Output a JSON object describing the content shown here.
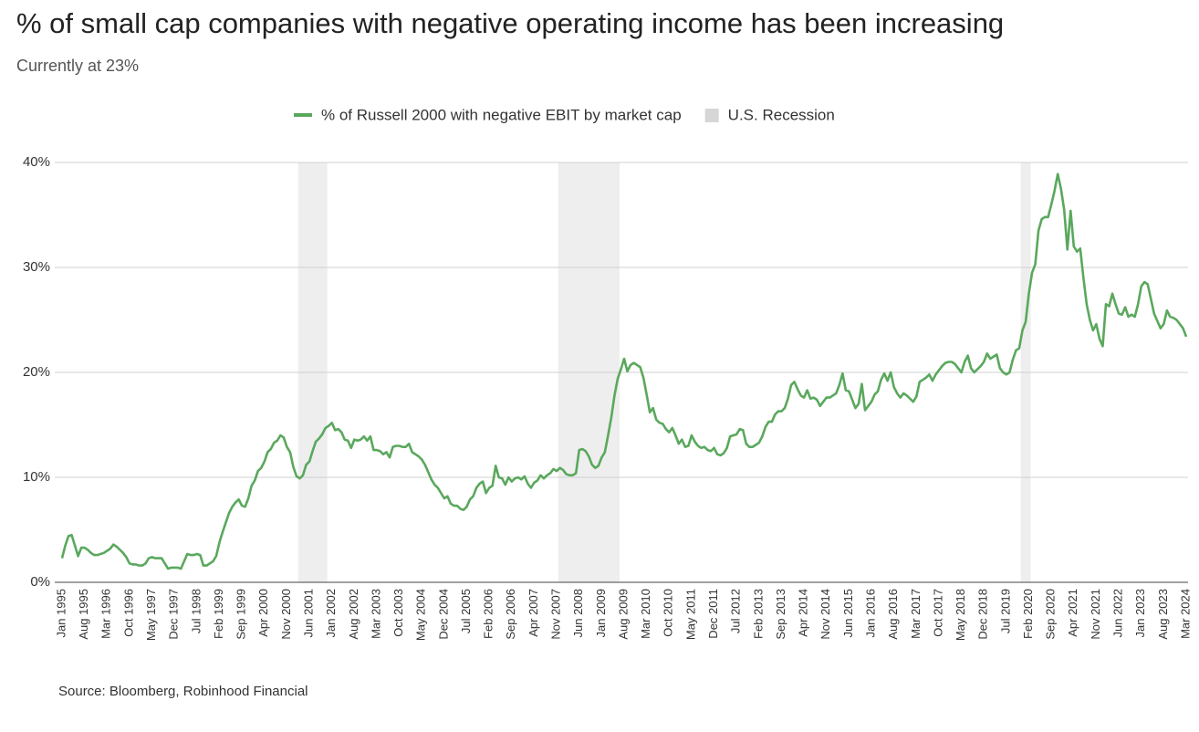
{
  "chart_data": {
    "type": "line",
    "title": "% of small cap companies with negative operating income has been increasing",
    "subtitle": "Currently at 23%",
    "source": "Source: Bloomberg, Robinhood Financial",
    "ylim": [
      0,
      40
    ],
    "yticks": [
      {
        "value": 0,
        "label": "0%"
      },
      {
        "value": 10,
        "label": "10%"
      },
      {
        "value": 20,
        "label": "20%"
      },
      {
        "value": 30,
        "label": "30%"
      },
      {
        "value": 40,
        "label": "40%"
      }
    ],
    "grid": true,
    "legend": "top",
    "categories": [
      "Jan 1995",
      null,
      null,
      null,
      null,
      null,
      null,
      "Aug 1995",
      null,
      null,
      null,
      null,
      null,
      null,
      "Mar 1996",
      null,
      null,
      null,
      null,
      null,
      null,
      "Oct 1996",
      null,
      null,
      null,
      null,
      null,
      null,
      "May 1997",
      null,
      null,
      null,
      null,
      null,
      null,
      "Dec 1997",
      null,
      null,
      null,
      null,
      null,
      null,
      "Jul 1998",
      null,
      null,
      null,
      null,
      null,
      null,
      "Feb 1999",
      null,
      null,
      null,
      null,
      null,
      null,
      "Sep 1999",
      null,
      null,
      null,
      null,
      null,
      null,
      "Apr 2000",
      null,
      null,
      null,
      null,
      null,
      null,
      "Nov 2000",
      null,
      null,
      null,
      null,
      null,
      null,
      "Jun 2001",
      null,
      null,
      null,
      null,
      null,
      null,
      "Jan 2002",
      null,
      null,
      null,
      null,
      null,
      null,
      "Aug 2002",
      null,
      null,
      null,
      null,
      null,
      null,
      "Mar 2003",
      null,
      null,
      null,
      null,
      null,
      null,
      "Oct 2003",
      null,
      null,
      null,
      null,
      null,
      null,
      "May 2004",
      null,
      null,
      null,
      null,
      null,
      null,
      "Dec 2004",
      null,
      null,
      null,
      null,
      null,
      null,
      "Jul 2005",
      null,
      null,
      null,
      null,
      null,
      null,
      "Feb 2006",
      null,
      null,
      null,
      null,
      null,
      null,
      "Sep 2006",
      null,
      null,
      null,
      null,
      null,
      null,
      "Apr 2007",
      null,
      null,
      null,
      null,
      null,
      null,
      "Nov 2007",
      null,
      null,
      null,
      null,
      null,
      null,
      "Jun 2008",
      null,
      null,
      null,
      null,
      null,
      null,
      "Jan 2009",
      null,
      null,
      null,
      null,
      null,
      null,
      "Aug 2009",
      null,
      null,
      null,
      null,
      null,
      null,
      "Mar 2010",
      null,
      null,
      null,
      null,
      null,
      null,
      "Oct 2010",
      null,
      null,
      null,
      null,
      null,
      null,
      "May 2011",
      null,
      null,
      null,
      null,
      null,
      null,
      "Dec 2011",
      null,
      null,
      null,
      null,
      null,
      null,
      "Jul 2012",
      null,
      null,
      null,
      null,
      null,
      null,
      "Feb 2013",
      null,
      null,
      null,
      null,
      null,
      null,
      "Sep 2013",
      null,
      null,
      null,
      null,
      null,
      null,
      "Apr 2014",
      null,
      null,
      null,
      null,
      null,
      null,
      "Nov 2014",
      null,
      null,
      null,
      null,
      null,
      null,
      "Jun 2015",
      null,
      null,
      null,
      null,
      null,
      null,
      "Jan 2016",
      null,
      null,
      null,
      null,
      null,
      null,
      "Aug 2016",
      null,
      null,
      null,
      null,
      null,
      null,
      "Mar 2017",
      null,
      null,
      null,
      null,
      null,
      null,
      "Oct 2017",
      null,
      null,
      null,
      null,
      null,
      null,
      "May 2018",
      null,
      null,
      null,
      null,
      null,
      null,
      "Dec 2018",
      null,
      null,
      null,
      null,
      null,
      null,
      "Jul 2019",
      null,
      null,
      null,
      null,
      null,
      null,
      "Feb 2020",
      null,
      null,
      null,
      null,
      null,
      null,
      "Sep 2020",
      null,
      null,
      null,
      null,
      null,
      null,
      "Apr 2021",
      null,
      null,
      null,
      null,
      null,
      null,
      "Nov 2021",
      null,
      null,
      null,
      null,
      null,
      null,
      "Jun 2022",
      null,
      null,
      null,
      null,
      null,
      null,
      "Jan 2023",
      null,
      null,
      null,
      null,
      null,
      null,
      "Aug 2023",
      null,
      null,
      null,
      null,
      null,
      null,
      "Mar 2024"
    ],
    "series": [
      {
        "name": "% of Russell 2000 with negative EBIT by market cap",
        "color": "#5aa85d",
        "values": [
          2.3,
          3.5,
          4.4,
          4.5,
          3.5,
          2.5,
          3.3,
          3.3,
          3.1,
          2.8,
          2.6,
          2.6,
          2.7,
          2.8,
          3.0,
          3.2,
          3.6,
          3.4,
          3.1,
          2.8,
          2.4,
          1.8,
          1.7,
          1.7,
          1.6,
          1.6,
          1.8,
          2.3,
          2.4,
          2.3,
          2.3,
          2.3,
          1.8,
          1.3,
          1.4,
          1.4,
          1.4,
          1.3,
          2.0,
          2.7,
          2.6,
          2.6,
          2.7,
          2.6,
          1.6,
          1.6,
          1.8,
          2.0,
          2.5,
          3.8,
          4.8,
          5.7,
          6.6,
          7.2,
          7.6,
          7.9,
          7.3,
          7.2,
          8.0,
          9.2,
          9.7,
          10.6,
          10.9,
          11.5,
          12.4,
          12.7,
          13.3,
          13.5,
          14.0,
          13.8,
          12.9,
          12.4,
          11.0,
          10.1,
          9.9,
          10.2,
          11.2,
          11.5,
          12.5,
          13.4,
          13.7,
          14.1,
          14.7,
          14.9,
          15.2,
          14.5,
          14.6,
          14.3,
          13.6,
          13.5,
          12.8,
          13.6,
          13.5,
          13.6,
          13.9,
          13.5,
          13.9,
          12.6,
          12.6,
          12.5,
          12.2,
          12.4,
          11.9,
          12.9,
          13.0,
          13.0,
          12.9,
          12.9,
          13.2,
          12.4,
          12.2,
          12.0,
          11.7,
          11.2,
          10.5,
          9.8,
          9.3,
          9.0,
          8.5,
          8.0,
          8.2,
          7.5,
          7.3,
          7.3,
          7.0,
          6.9,
          7.2,
          7.9,
          8.2,
          9.0,
          9.4,
          9.6,
          8.5,
          9.0,
          9.2,
          11.1,
          10.0,
          9.9,
          9.3,
          10.0,
          9.6,
          9.9,
          10.0,
          9.8,
          10.1,
          9.4,
          9.0,
          9.5,
          9.7,
          10.2,
          9.9,
          10.2,
          10.4,
          10.8,
          10.6,
          10.9,
          10.7,
          10.3,
          10.2,
          10.2,
          10.4,
          12.6,
          12.7,
          12.5,
          12.0,
          11.2,
          10.9,
          11.1,
          11.9,
          12.4,
          14.0,
          15.7,
          17.8,
          19.4,
          20.3,
          21.3,
          20.1,
          20.7,
          20.9,
          20.7,
          20.5,
          19.5,
          17.9,
          16.2,
          16.6,
          15.5,
          15.2,
          15.1,
          14.6,
          14.3,
          14.7,
          14.0,
          13.2,
          13.6,
          12.9,
          13.0,
          14.0,
          13.4,
          13.0,
          12.8,
          12.9,
          12.6,
          12.5,
          12.8,
          12.2,
          12.1,
          12.3,
          12.8,
          13.9,
          14.0,
          14.1,
          14.6,
          14.5,
          13.2,
          12.9,
          12.9,
          13.1,
          13.3,
          13.9,
          14.8,
          15.3,
          15.3,
          16.0,
          16.3,
          16.3,
          16.6,
          17.5,
          18.8,
          19.1,
          18.4,
          17.8,
          17.6,
          18.3,
          17.5,
          17.6,
          17.4,
          16.8,
          17.2,
          17.6,
          17.6,
          17.8,
          18.0,
          18.8,
          19.9,
          18.3,
          18.2,
          17.4,
          16.6,
          17.0,
          18.9,
          16.4,
          16.8,
          17.2,
          17.9,
          18.2,
          19.3,
          19.9,
          19.2,
          20.0,
          18.6,
          18.0,
          17.6,
          18.0,
          17.8,
          17.5,
          17.2,
          17.7,
          19.1,
          19.3,
          19.5,
          19.8,
          19.2,
          19.8,
          20.2,
          20.6,
          20.9,
          21.0,
          21.0,
          20.8,
          20.4,
          20.0,
          21.0,
          21.6,
          20.4,
          20.0,
          20.3,
          20.6,
          21.0,
          21.8,
          21.3,
          21.5,
          21.7,
          20.4,
          20.0,
          19.8,
          20.0,
          21.2,
          22.1,
          22.3,
          24.0,
          24.8,
          27.5,
          29.5,
          30.3,
          33.5,
          34.6,
          34.8,
          34.8,
          36.0,
          37.3,
          38.9,
          37.5,
          35.5,
          31.7,
          35.4,
          32.0,
          31.5,
          31.8,
          29.0,
          26.5,
          25.0,
          24.0,
          24.6,
          23.2,
          22.5,
          26.5,
          26.3,
          27.5,
          26.5,
          25.6,
          25.5,
          26.2,
          25.3,
          25.5,
          25.3,
          26.5,
          28.2,
          28.6,
          28.4,
          27.0,
          25.6,
          24.9,
          24.2,
          24.6,
          25.9,
          25.3,
          25.2,
          25.0,
          24.6,
          24.2,
          23.4
        ]
      },
      {
        "name": "U.S. Recession",
        "color": "#d6d6d6",
        "type": "band",
        "values": [
          null,
          null,
          null,
          null,
          null,
          null,
          null,
          null,
          null,
          null,
          null,
          null,
          null,
          null,
          null,
          null,
          null,
          null,
          null,
          null,
          null,
          null,
          null,
          null,
          null,
          null,
          null,
          null,
          null,
          null,
          null,
          null,
          null,
          null,
          null,
          null,
          null,
          null,
          null,
          null,
          null,
          null,
          null,
          null,
          null,
          null,
          null,
          null,
          null,
          null,
          null,
          null,
          null,
          null,
          null,
          null,
          null,
          null,
          null,
          null,
          null,
          null,
          null,
          null,
          null,
          null,
          null,
          null,
          null,
          null,
          null,
          null,
          null,
          null,
          40,
          40,
          40,
          40,
          40,
          40,
          40,
          40,
          40,
          null,
          null,
          null,
          null,
          null,
          null,
          null,
          null,
          null,
          null,
          null,
          null,
          null,
          null,
          null,
          null,
          null,
          null,
          null,
          null,
          null,
          null,
          null,
          null,
          null,
          null,
          null,
          null,
          null,
          null,
          null,
          null,
          null,
          null,
          null,
          null,
          null,
          null,
          null,
          null,
          null,
          null,
          null,
          null,
          null,
          null,
          null,
          null,
          null,
          null,
          null,
          null,
          null,
          null,
          null,
          null,
          null,
          null,
          null,
          null,
          null,
          null,
          null,
          null,
          null,
          null,
          null,
          null,
          null,
          null,
          null,
          null,
          40,
          40,
          40,
          40,
          40,
          40,
          40,
          40,
          40,
          40,
          40,
          40,
          40,
          40,
          40,
          40,
          40,
          40,
          40,
          null,
          null,
          null,
          null,
          null,
          null,
          null,
          null,
          null,
          null,
          null,
          null,
          null,
          null,
          null,
          null,
          null,
          null,
          null,
          null,
          null,
          null,
          null,
          null,
          null,
          null,
          null,
          null,
          null,
          null,
          null,
          null,
          null,
          null,
          null,
          null,
          null,
          null,
          null,
          null,
          null,
          null,
          null,
          null,
          null,
          null,
          null,
          null,
          null,
          null,
          null,
          null,
          null,
          null,
          null,
          null,
          null,
          null,
          null,
          null,
          null,
          null,
          null,
          null,
          null,
          null,
          null,
          null,
          null,
          null,
          null,
          null,
          null,
          null,
          null,
          null,
          null,
          null,
          null,
          null,
          null,
          null,
          null,
          null,
          null,
          null,
          null,
          null,
          null,
          null,
          null,
          null,
          null,
          null,
          null,
          null,
          null,
          null,
          null,
          null,
          null,
          null,
          null,
          null,
          null,
          null,
          null,
          null,
          null,
          null,
          null,
          null,
          null,
          null,
          null,
          null,
          null,
          null,
          null,
          null,
          null,
          null,
          null,
          null,
          null,
          40,
          40,
          40,
          null,
          null,
          null,
          null,
          null,
          null,
          null,
          null,
          null,
          null,
          null,
          null,
          null,
          null,
          null,
          null,
          null,
          null,
          null,
          null,
          null,
          null,
          null,
          null,
          null,
          null,
          null,
          null,
          null,
          null,
          null,
          null,
          null,
          null,
          null,
          null,
          null,
          null,
          null,
          null,
          null,
          null,
          null,
          null,
          null,
          null,
          null,
          null,
          null
        ]
      }
    ]
  }
}
